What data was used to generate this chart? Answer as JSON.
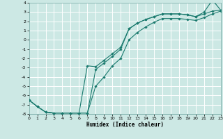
{
  "xlabel": "Humidex (Indice chaleur)",
  "bg_color": "#cce8e4",
  "line_color": "#1a7a6e",
  "grid_color": "#ffffff",
  "grid_minor_color": "#ddeee8",
  "xlim": [
    0,
    23
  ],
  "ylim": [
    -8,
    4
  ],
  "xticks": [
    0,
    1,
    2,
    3,
    4,
    5,
    6,
    7,
    8,
    9,
    10,
    11,
    12,
    13,
    14,
    15,
    16,
    17,
    18,
    19,
    20,
    21,
    22,
    23
  ],
  "yticks": [
    -8,
    -7,
    -6,
    -5,
    -4,
    -3,
    -2,
    -1,
    0,
    1,
    2,
    3,
    4
  ],
  "line1_x": [
    0,
    1,
    2,
    3,
    4,
    5,
    6,
    7,
    8,
    9,
    10,
    11,
    12,
    13,
    14,
    15,
    16,
    17,
    18,
    19,
    20,
    21,
    22,
    23
  ],
  "line1_y": [
    -6.5,
    -7.2,
    -7.8,
    -7.9,
    -7.9,
    -7.9,
    -7.9,
    -7.9,
    -3.2,
    -2.5,
    -1.8,
    -1.0,
    1.2,
    1.8,
    2.2,
    2.5,
    2.8,
    2.8,
    2.8,
    2.7,
    2.5,
    3.0,
    4.3,
    3.2
  ],
  "line2_x": [
    0,
    1,
    2,
    3,
    4,
    5,
    6,
    7,
    8,
    9,
    10,
    11,
    12,
    13,
    14,
    15,
    16,
    17,
    18,
    19,
    20,
    21,
    22,
    23
  ],
  "line2_y": [
    -6.5,
    -7.2,
    -7.8,
    -7.9,
    -7.9,
    -7.9,
    -7.9,
    -2.8,
    -2.9,
    -2.2,
    -1.5,
    -0.8,
    1.2,
    1.8,
    2.2,
    2.5,
    2.8,
    2.8,
    2.8,
    2.7,
    2.5,
    2.8,
    3.1,
    3.2
  ],
  "line3_x": [
    0,
    1,
    2,
    3,
    4,
    5,
    6,
    7,
    8,
    9,
    10,
    11,
    12,
    13,
    14,
    15,
    16,
    17,
    18,
    19,
    20,
    21,
    22,
    23
  ],
  "line3_y": [
    -6.5,
    -7.2,
    -7.8,
    -7.9,
    -7.9,
    -7.9,
    -7.9,
    -7.9,
    -5.0,
    -4.0,
    -2.8,
    -2.0,
    0.0,
    0.8,
    1.4,
    1.9,
    2.3,
    2.3,
    2.3,
    2.2,
    2.1,
    2.4,
    2.8,
    3.1
  ]
}
